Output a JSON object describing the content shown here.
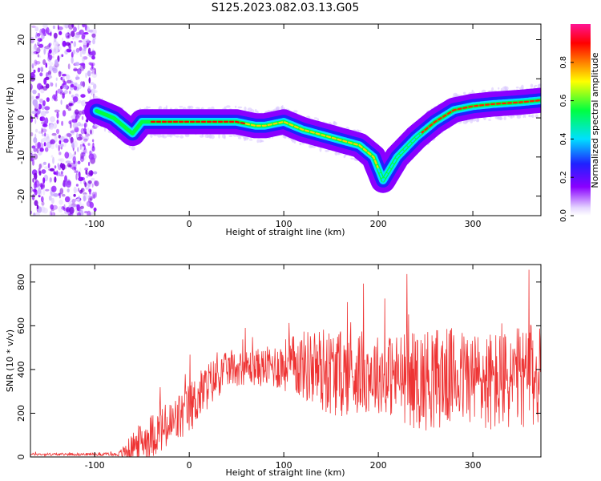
{
  "title": "S125.2023.082.03.13.G05",
  "chart_data": [
    {
      "type": "heatmap",
      "xlabel": "Height of straight line (km)",
      "ylabel": "Frequency (Hz)",
      "xlim": [
        -168,
        372
      ],
      "ylim": [
        -25,
        24
      ],
      "xticks": [
        -100,
        0,
        100,
        200,
        300
      ],
      "xtick_labels": [
        "-100",
        "0",
        "100",
        "200",
        "300"
      ],
      "yticks": [
        -20,
        -10,
        0,
        10,
        20
      ],
      "ytick_labels": [
        "-20",
        "-10",
        "0",
        "10",
        "20"
      ],
      "grid": false,
      "colorbar": {
        "label": "Normalized spectral amplitude",
        "range": [
          0,
          1
        ],
        "ticks": [
          0.0,
          0.2,
          0.4,
          0.6,
          0.8
        ],
        "tick_labels": [
          "0.0",
          "0.2",
          "0.4",
          "0.6",
          "0.8"
        ],
        "colormap": [
          "#ffffff",
          "#e6d8ff",
          "#8a00ff",
          "#2020ff",
          "#00e0ff",
          "#00ff40",
          "#ffff00",
          "#ff8000",
          "#ff0000",
          "#ff1493"
        ]
      },
      "ridge": {
        "x": [
          -100,
          -80,
          -70,
          -60,
          -50,
          -40,
          -20,
          0,
          20,
          50,
          70,
          80,
          100,
          120,
          150,
          180,
          195,
          200,
          205,
          210,
          220,
          240,
          260,
          280,
          300,
          320,
          350,
          372
        ],
        "frequency": [
          2,
          0,
          -2,
          -4,
          -1,
          -1,
          -1,
          -1,
          -1,
          -1,
          -2,
          -2,
          -1,
          -3,
          -5,
          -7,
          -10,
          -13,
          -16,
          -14,
          -10,
          -5,
          -1,
          2,
          3,
          3.5,
          4,
          4.5
        ]
      }
    },
    {
      "type": "line",
      "xlabel": "Height of straight line (km)",
      "ylabel": "SNR (10 * v/v)",
      "xlim": [
        -168,
        372
      ],
      "ylim": [
        0,
        880
      ],
      "xticks": [
        -100,
        0,
        100,
        200,
        300
      ],
      "xtick_labels": [
        "-100",
        "0",
        "100",
        "200",
        "300"
      ],
      "yticks": [
        0,
        200,
        400,
        600,
        800
      ],
      "ytick_labels": [
        "0",
        "200",
        "400",
        "600",
        "800"
      ],
      "grid": false,
      "series_color": "#ee3333",
      "envelope": {
        "x": [
          -168,
          -100,
          -75,
          -65,
          -55,
          -40,
          -20,
          0,
          20,
          40,
          60,
          80,
          100,
          120,
          140,
          160,
          180,
          200,
          220,
          240,
          260,
          280,
          300,
          320,
          340,
          360,
          372
        ],
        "baseline": [
          12,
          12,
          12,
          30,
          60,
          100,
          140,
          220,
          330,
          400,
          410,
          410,
          420,
          420,
          400,
          380,
          390,
          380,
          370,
          350,
          360,
          370,
          360,
          340,
          350,
          370,
          360
        ],
        "spread": [
          6,
          6,
          8,
          50,
          80,
          100,
          120,
          120,
          110,
          80,
          80,
          90,
          120,
          160,
          200,
          200,
          190,
          180,
          200,
          230,
          240,
          220,
          220,
          240,
          230,
          240,
          240
        ]
      }
    }
  ]
}
